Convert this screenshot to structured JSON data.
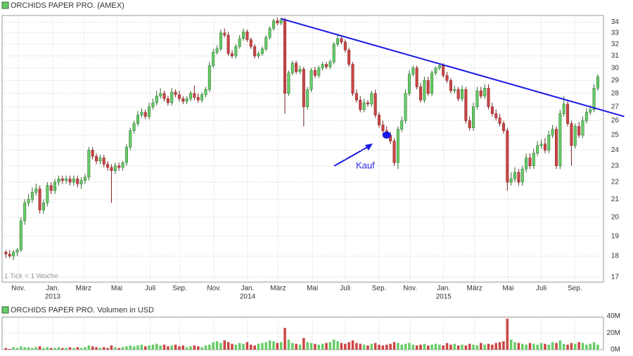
{
  "chart_data": {
    "type": "candlestick",
    "title": "ORCHIDS PAPER PRO. (AMEX)",
    "note": "1 Tick = 1 Woche",
    "log_scale": true,
    "grid": true,
    "up_color": "#66cc66",
    "down_color": "#cc4444",
    "trendline_color": "#1a1ae6",
    "ylim": [
      16.77,
      34.6
    ],
    "yticks": [
      17,
      18,
      19,
      20,
      21,
      22,
      23,
      24,
      25,
      26,
      27,
      28,
      29,
      30,
      31,
      32,
      33,
      34
    ],
    "xlim": [
      -1,
      158.5
    ],
    "xticks": [
      {
        "value": 3.3,
        "label": "Nov."
      },
      {
        "value": 12.4,
        "label": "Jan."
      },
      {
        "value": 20.6,
        "label": "März"
      },
      {
        "value": 29.4,
        "label": "Mai"
      },
      {
        "value": 38.3,
        "label": "Juli"
      },
      {
        "value": 46.1,
        "label": "Sep."
      },
      {
        "value": 55.2,
        "label": "Nov."
      },
      {
        "value": 64.1,
        "label": "Jan."
      },
      {
        "value": 72.2,
        "label": "März"
      },
      {
        "value": 81.3,
        "label": "Mai"
      },
      {
        "value": 90,
        "label": "Juli"
      },
      {
        "value": 99,
        "label": "Sep."
      },
      {
        "value": 107.2,
        "label": "Nov."
      },
      {
        "value": 116.1,
        "label": "Jan."
      },
      {
        "value": 124.3,
        "label": "März"
      },
      {
        "value": 133.2,
        "label": "Mai"
      },
      {
        "value": 142,
        "label": "Juli"
      },
      {
        "value": 150.9,
        "label": "Sep."
      }
    ],
    "x_year_labels": [
      {
        "value": 12.4,
        "label": "2013"
      },
      {
        "value": 64.1,
        "label": "2014"
      },
      {
        "value": 116.1,
        "label": "2015"
      }
    ],
    "open": [
      18.2,
      18.1,
      18.0,
      18.2,
      18.3,
      19.8,
      20.8,
      21.0,
      21.4,
      21.6,
      20.4,
      20.8,
      21.8,
      21.5,
      22.0,
      22.2,
      22.1,
      22.2,
      22.0,
      22.2,
      21.9,
      22.1,
      22.3,
      24.0,
      23.6,
      23.3,
      23.5,
      23.1,
      22.9,
      22.7,
      23.0,
      22.9,
      23.2,
      24.2,
      25.3,
      25.8,
      26.4,
      26.6,
      26.3,
      27.0,
      27.3,
      27.8,
      28.0,
      27.6,
      27.3,
      28.1,
      27.9,
      27.6,
      27.4,
      27.6,
      28.0,
      27.7,
      27.5,
      27.9,
      28.3,
      30.2,
      31.3,
      31.6,
      33.0,
      32.8,
      31.2,
      31.0,
      31.8,
      32.5,
      33.1,
      32.4,
      31.8,
      31.0,
      31.2,
      31.6,
      32.6,
      33.4,
      34.1,
      33.9,
      34.2,
      28.0,
      29.6,
      30.4,
      29.7,
      29.9,
      27.0,
      28.3,
      29.8,
      29.4,
      30.0,
      30.3,
      30.1,
      30.5,
      32.0,
      32.5,
      32.2,
      31.5,
      30.3,
      28.0,
      27.5,
      26.8,
      27.3,
      27.2,
      28.0,
      26.4,
      25.7,
      25.3,
      25.0,
      24.6,
      23.2,
      25.4,
      26.0,
      28.0,
      29.5,
      30.0,
      28.5,
      27.5,
      29.0,
      28.0,
      29.6,
      30.0,
      30.2,
      29.4,
      29.0,
      28.2,
      28.3,
      27.6,
      28.3,
      26.0,
      25.5,
      27.0,
      28.2,
      27.8,
      28.4,
      27.0,
      26.5,
      26.2,
      25.8,
      25.3,
      22.0,
      22.2,
      22.6,
      22.0,
      22.8,
      23.5,
      23.0,
      23.8,
      24.3,
      24.4,
      24.0,
      25.0,
      25.4,
      23.0,
      26.5,
      27.2,
      25.8,
      24.3,
      25.6,
      25.0,
      26.0,
      26.6,
      26.8,
      28.4
    ],
    "high": [
      18.3,
      18.3,
      18.3,
      18.4,
      20.0,
      21.0,
      21.3,
      21.7,
      21.9,
      21.8,
      21.0,
      22.0,
      22.0,
      22.2,
      22.4,
      22.4,
      22.4,
      22.4,
      22.4,
      22.4,
      22.3,
      22.5,
      24.2,
      24.2,
      23.8,
      23.7,
      23.7,
      23.3,
      23.1,
      23.2,
      23.2,
      23.3,
      24.4,
      25.5,
      26.0,
      26.7,
      26.9,
      26.8,
      27.3,
      27.6,
      28.2,
      28.4,
      28.2,
      27.8,
      28.4,
      28.3,
      28.2,
      27.8,
      27.8,
      28.2,
      28.6,
      28.0,
      28.1,
      28.5,
      30.5,
      31.6,
      31.9,
      33.3,
      33.4,
      33.1,
      31.5,
      32.0,
      32.8,
      33.4,
      33.3,
      32.6,
      32.0,
      31.4,
      31.8,
      32.8,
      33.6,
      34.3,
      34.4,
      34.4,
      34.4,
      29.8,
      30.6,
      30.6,
      30.2,
      30.1,
      28.5,
      30.0,
      30.1,
      30.2,
      30.5,
      30.5,
      30.7,
      32.2,
      32.8,
      32.8,
      32.4,
      31.7,
      30.5,
      28.3,
      27.8,
      27.6,
      27.5,
      28.2,
      28.3,
      26.6,
      26.0,
      25.6,
      25.2,
      24.8,
      25.6,
      26.3,
      28.3,
      29.8,
      30.2,
      30.2,
      28.8,
      29.3,
      29.3,
      29.8,
      30.1,
      30.4,
      30.4,
      29.7,
      29.2,
      28.6,
      28.5,
      28.6,
      28.5,
      26.3,
      27.3,
      28.5,
      28.5,
      28.7,
      28.7,
      27.3,
      26.8,
      26.5,
      26.0,
      25.5,
      22.6,
      22.9,
      22.8,
      23.0,
      23.8,
      23.8,
      24.1,
      24.6,
      24.7,
      24.8,
      25.3,
      25.7,
      25.6,
      26.8,
      27.8,
      27.5,
      26.0,
      25.8,
      25.9,
      26.3,
      26.9,
      27.1,
      28.7,
      29.5
    ],
    "low": [
      17.9,
      17.9,
      17.8,
      18.0,
      18.2,
      19.6,
      20.6,
      20.8,
      21.2,
      20.2,
      20.2,
      20.6,
      21.3,
      21.3,
      21.8,
      21.9,
      21.9,
      21.8,
      21.8,
      21.7,
      21.6,
      21.9,
      22.1,
      23.4,
      23.1,
      23.1,
      22.9,
      22.7,
      20.8,
      22.5,
      22.7,
      22.7,
      23.0,
      24.0,
      25.1,
      25.6,
      26.2,
      26.1,
      26.1,
      26.8,
      27.1,
      27.6,
      27.4,
      27.1,
      27.1,
      27.7,
      27.4,
      27.2,
      27.2,
      27.4,
      27.5,
      27.3,
      27.3,
      27.7,
      28.1,
      30.0,
      31.1,
      31.4,
      32.6,
      31.0,
      30.8,
      30.8,
      31.6,
      32.3,
      32.2,
      31.6,
      30.8,
      30.8,
      31.0,
      31.4,
      32.4,
      33.2,
      33.7,
      33.7,
      26.5,
      27.8,
      29.4,
      29.5,
      29.5,
      25.6,
      26.8,
      28.1,
      29.2,
      29.2,
      29.8,
      29.9,
      29.9,
      30.3,
      31.8,
      32.0,
      31.3,
      30.1,
      27.8,
      27.3,
      26.6,
      26.6,
      27.0,
      27.0,
      26.2,
      25.5,
      25.1,
      24.8,
      24.4,
      23.0,
      22.8,
      25.2,
      25.8,
      27.8,
      29.3,
      28.3,
      27.3,
      27.3,
      27.8,
      27.8,
      29.4,
      29.8,
      29.2,
      28.8,
      28.0,
      28.0,
      27.4,
      27.4,
      25.8,
      25.3,
      25.3,
      26.8,
      27.6,
      27.6,
      26.8,
      26.3,
      26.0,
      25.6,
      25.1,
      21.5,
      21.8,
      22.0,
      21.8,
      21.8,
      22.6,
      22.8,
      22.8,
      23.6,
      24.1,
      23.8,
      23.8,
      24.8,
      22.8,
      22.8,
      26.3,
      25.6,
      23.0,
      24.1,
      24.8,
      24.8,
      25.8,
      26.4,
      26.6,
      28.2
    ],
    "close": [
      18.1,
      18.0,
      18.2,
      18.3,
      19.8,
      20.8,
      21.0,
      21.4,
      21.6,
      20.4,
      20.8,
      21.8,
      21.5,
      22.0,
      22.2,
      22.1,
      22.2,
      22.0,
      22.2,
      21.9,
      22.1,
      22.3,
      24.0,
      23.6,
      23.3,
      23.5,
      23.1,
      22.9,
      22.7,
      23.0,
      22.9,
      23.2,
      24.2,
      25.3,
      25.8,
      26.4,
      26.6,
      26.3,
      27.0,
      27.3,
      27.8,
      28.0,
      27.6,
      27.3,
      28.1,
      27.9,
      27.6,
      27.4,
      27.6,
      28.0,
      27.7,
      27.5,
      27.9,
      28.3,
      30.2,
      31.3,
      31.6,
      33.0,
      32.8,
      31.2,
      31.0,
      31.8,
      32.5,
      33.1,
      32.4,
      31.8,
      31.0,
      31.2,
      31.6,
      32.6,
      33.4,
      34.1,
      33.9,
      34.2,
      28.0,
      29.6,
      30.4,
      29.7,
      29.9,
      27.0,
      28.3,
      29.8,
      29.4,
      30.0,
      30.3,
      30.1,
      30.5,
      32.0,
      32.5,
      32.2,
      31.5,
      30.3,
      28.0,
      27.5,
      26.8,
      27.3,
      27.2,
      28.0,
      26.4,
      25.7,
      25.3,
      25.0,
      24.6,
      23.2,
      25.4,
      26.0,
      28.0,
      29.5,
      30.0,
      28.5,
      27.5,
      29.0,
      28.0,
      29.6,
      30.0,
      30.2,
      29.4,
      29.0,
      28.2,
      28.3,
      27.6,
      28.3,
      26.0,
      25.5,
      27.0,
      28.2,
      27.8,
      28.4,
      27.0,
      26.5,
      26.2,
      25.8,
      25.3,
      22.0,
      22.2,
      22.6,
      22.0,
      22.8,
      23.5,
      23.0,
      23.8,
      24.3,
      24.4,
      24.0,
      25.0,
      25.4,
      23.0,
      26.5,
      27.2,
      25.8,
      24.3,
      25.6,
      25.0,
      26.0,
      26.6,
      26.8,
      28.4,
      29.3
    ],
    "trendline": {
      "start": [
        73,
        34.3
      ],
      "end": [
        164,
        26.3
      ]
    },
    "buy_marker": {
      "x": 101,
      "y": 25.0
    },
    "annotation": "Kauf",
    "volume": {
      "title": "ORCHIDS PAPER PRO. Volumen in USD",
      "ylim": [
        0,
        42
      ],
      "yticks": [
        {
          "value": 0,
          "label": "0M"
        },
        {
          "value": 20,
          "label": "20M"
        },
        {
          "value": 40,
          "label": "40M"
        }
      ],
      "values": [
        2,
        1,
        3,
        2,
        4,
        3,
        3,
        2,
        3,
        4,
        2,
        3,
        2,
        2,
        3,
        2,
        2,
        3,
        2,
        3,
        2,
        3,
        5,
        4,
        3,
        2,
        3,
        2,
        5,
        3,
        2,
        3,
        4,
        5,
        4,
        5,
        6,
        4,
        5,
        6,
        7,
        5,
        6,
        4,
        5,
        6,
        4,
        5,
        3,
        4,
        5,
        4,
        3,
        5,
        6,
        9,
        10,
        8,
        11,
        9,
        7,
        6,
        8,
        7,
        9,
        6,
        5,
        7,
        8,
        9,
        11,
        10,
        8,
        9,
        26,
        12,
        8,
        7,
        6,
        14,
        9,
        8,
        7,
        6,
        7,
        8,
        9,
        12,
        10,
        8,
        7,
        9,
        11,
        8,
        7,
        6,
        5,
        7,
        8,
        6,
        5,
        6,
        7,
        9,
        8,
        6,
        7,
        8,
        6,
        5,
        6,
        7,
        5,
        6,
        7,
        6,
        5,
        8,
        6,
        7,
        5,
        6,
        5,
        7,
        6,
        5,
        8,
        6,
        7,
        6,
        8,
        9,
        10,
        37,
        12,
        9,
        8,
        7,
        6,
        8,
        7,
        6,
        8,
        7,
        6,
        9,
        8,
        11,
        7,
        6,
        8,
        7,
        9,
        8,
        6,
        7,
        9,
        6
      ]
    }
  }
}
